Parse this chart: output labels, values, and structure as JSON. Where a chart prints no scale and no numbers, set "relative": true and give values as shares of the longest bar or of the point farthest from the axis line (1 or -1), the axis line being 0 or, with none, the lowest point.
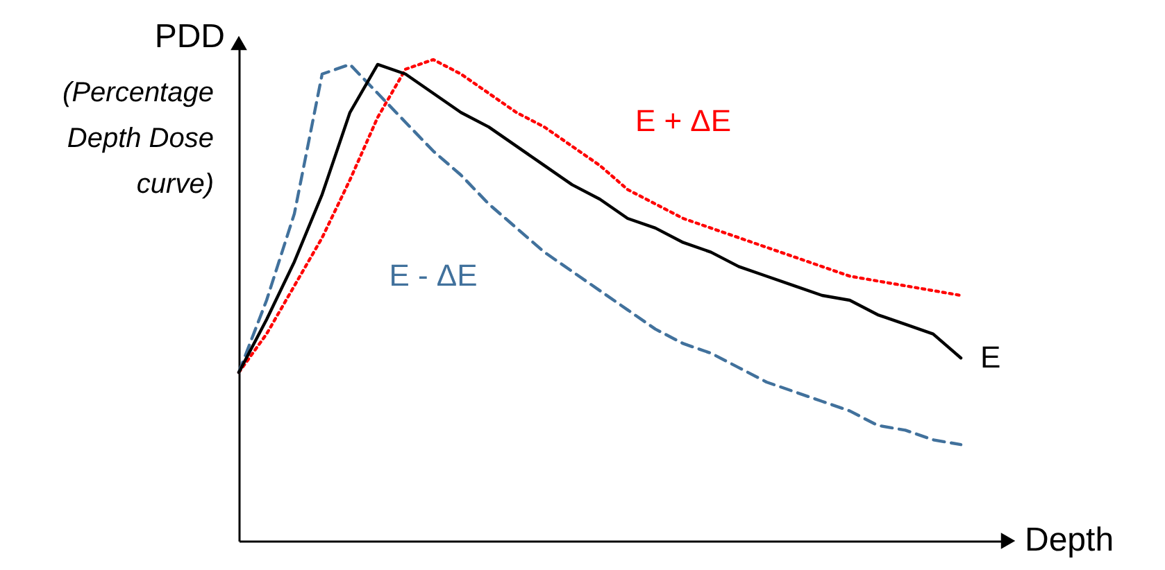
{
  "chart_data": {
    "type": "line",
    "relative": true,
    "ylabel": "PDD",
    "xlabel": "Depth",
    "annotations": [
      "(Percentage Depth Dose curve)"
    ],
    "categories": [
      null,
      null,
      null,
      null,
      null,
      null,
      null,
      null,
      null,
      null,
      null,
      null,
      null,
      null,
      null,
      null,
      null,
      null,
      null,
      null,
      null,
      null,
      null,
      null,
      null,
      null,
      null
    ],
    "series": [
      {
        "name": "E + ΔE",
        "color": "#ff0000",
        "line_style": "dotted",
        "values": [
          0.35,
          0.43,
          0.53,
          0.63,
          0.75,
          0.88,
          0.98,
          1,
          0.97,
          0.93,
          0.89,
          0.86,
          0.82,
          0.78,
          0.73,
          0.7,
          0.67,
          0.65,
          0.63,
          0.61,
          0.59,
          0.57,
          0.55,
          0.54,
          0.53,
          0.52,
          0.51
        ]
      },
      {
        "name": "E - ΔE",
        "color": "#41719c",
        "line_style": "dashed",
        "values": [
          0.35,
          0.5,
          0.68,
          0.97,
          0.99,
          0.93,
          0.87,
          0.81,
          0.76,
          0.7,
          0.65,
          0.6,
          0.56,
          0.52,
          0.48,
          0.44,
          0.41,
          0.39,
          0.36,
          0.33,
          0.31,
          0.29,
          0.27,
          0.24,
          0.23,
          0.21,
          0.2
        ]
      },
      {
        "name": "E",
        "color": "#000000",
        "line_style": "solid",
        "values": [
          0.35,
          0.46,
          0.58,
          0.72,
          0.89,
          0.99,
          0.97,
          0.93,
          0.89,
          0.86,
          0.82,
          0.78,
          0.74,
          0.71,
          0.67,
          0.65,
          0.62,
          0.6,
          0.57,
          0.55,
          0.53,
          0.51,
          0.5,
          0.47,
          0.45,
          0.43,
          0.38
        ]
      }
    ]
  }
}
